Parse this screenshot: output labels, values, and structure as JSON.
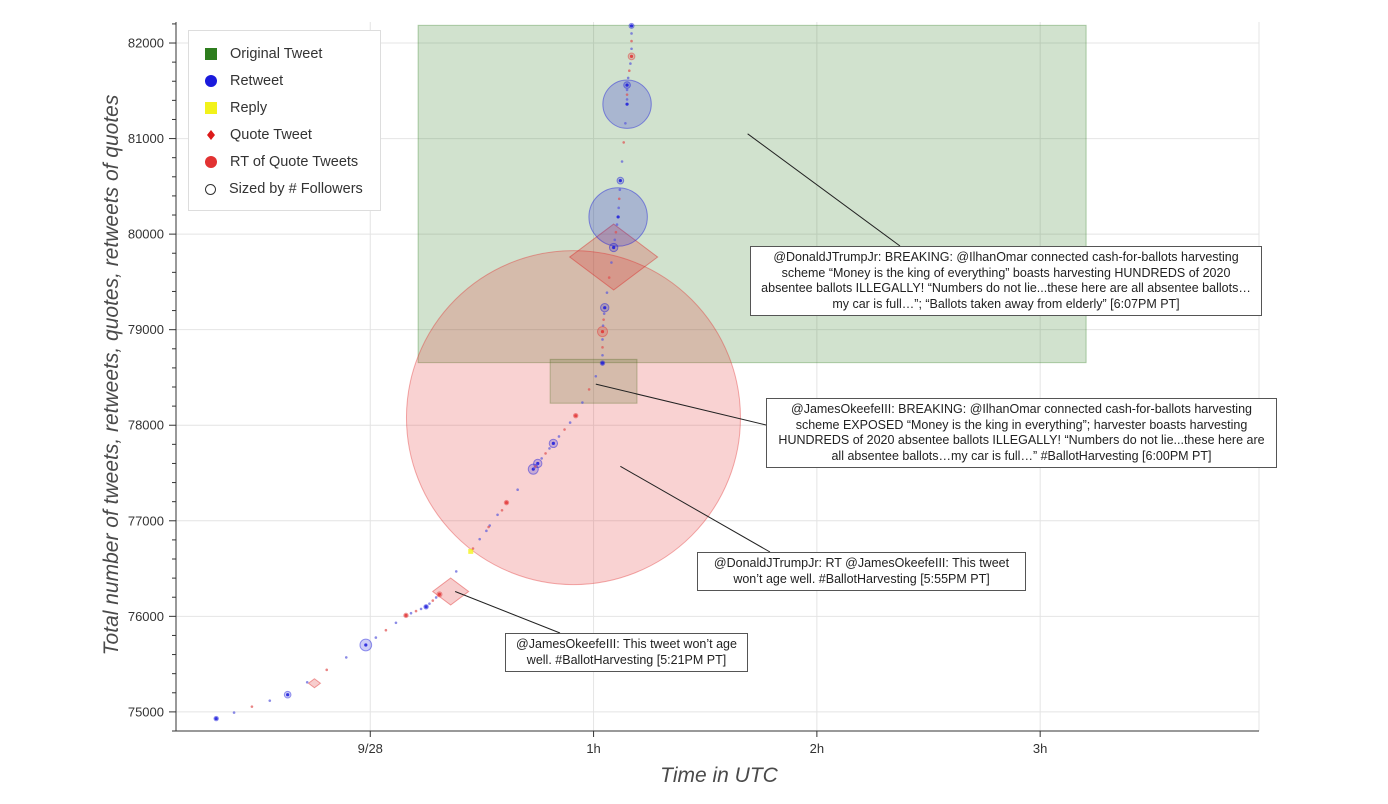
{
  "chart_data": {
    "type": "scatter",
    "title": "",
    "xlabel": "Time in UTC",
    "ylabel": "Total number of tweets, retweets, quotes, retweets of quotes",
    "x_unit": "hours after 23:00 UTC (9/27)",
    "x_ticks": [
      {
        "value": 1,
        "label": "9/28"
      },
      {
        "value": 2,
        "label": "1h"
      },
      {
        "value": 3,
        "label": "2h"
      },
      {
        "value": 4,
        "label": "3h"
      }
    ],
    "xlim": [
      0.13,
      4.98
    ],
    "ylim": [
      74800,
      82220
    ],
    "y_ticks": [
      75000,
      76000,
      77000,
      78000,
      79000,
      80000,
      81000,
      82000
    ],
    "grid": true,
    "legend": {
      "placement": "top-left",
      "entries": [
        {
          "label": "Original Tweet",
          "symbol": "square",
          "color": "#2e7d1e"
        },
        {
          "label": "Retweet",
          "symbol": "circle",
          "color": "#1a1adc"
        },
        {
          "label": "Reply",
          "symbol": "square",
          "color": "#f2f21a"
        },
        {
          "label": "Quote Tweet",
          "symbol": "diamond",
          "color": "#dc1a1a"
        },
        {
          "label": "RT of Quote Tweets",
          "symbol": "circle",
          "color": "#e23232"
        },
        {
          "label": "Sized by # Followers",
          "symbol": "circle-outline",
          "color": "#333333"
        }
      ]
    },
    "big_markers": [
      {
        "kind": "Original Tweet",
        "x": 2.71,
        "y": 80420,
        "size": 1.0
      },
      {
        "kind": "Original Tweet",
        "x": 2.0,
        "y": 78460,
        "size": 0.13
      },
      {
        "kind": "RT of Quote Tweets",
        "x": 1.91,
        "y": 78080,
        "size": 1.0
      },
      {
        "kind": "Quote Tweet",
        "x": 2.09,
        "y": 79760,
        "size": 0.44
      },
      {
        "kind": "Quote Tweet",
        "x": 1.36,
        "y": 76260,
        "size": 0.18
      },
      {
        "kind": "Quote Tweet",
        "x": 0.75,
        "y": 75300,
        "size": 0.06
      }
    ],
    "points": [
      {
        "kind": "Retweet",
        "x": 0.31,
        "y": 74930,
        "size": 0.02
      },
      {
        "kind": "Retweet",
        "x": 0.63,
        "y": 75180,
        "size": 0.04
      },
      {
        "kind": "Retweet",
        "x": 0.98,
        "y": 75700,
        "size": 0.07
      },
      {
        "kind": "RT of Quote Tweets",
        "x": 1.16,
        "y": 76010,
        "size": 0.015
      },
      {
        "kind": "Retweet",
        "x": 1.25,
        "y": 76100,
        "size": 0.01
      },
      {
        "kind": "RT of Quote Tweets",
        "x": 1.31,
        "y": 76230,
        "size": 0.03
      },
      {
        "kind": "RT of Quote Tweets",
        "x": 1.61,
        "y": 77190,
        "size": 0.02
      },
      {
        "kind": "Reply",
        "x": 1.45,
        "y": 76680,
        "size": 0.01
      },
      {
        "kind": "Retweet",
        "x": 1.73,
        "y": 77540,
        "size": 0.06
      },
      {
        "kind": "Retweet",
        "x": 1.75,
        "y": 77600,
        "size": 0.05
      },
      {
        "kind": "Retweet",
        "x": 1.82,
        "y": 77810,
        "size": 0.05
      },
      {
        "kind": "RT of Quote Tweets",
        "x": 1.92,
        "y": 78100,
        "size": 0.02
      },
      {
        "kind": "Retweet",
        "x": 2.04,
        "y": 78650,
        "size": 0.015
      },
      {
        "kind": "RT of Quote Tweets",
        "x": 2.04,
        "y": 78980,
        "size": 0.06
      },
      {
        "kind": "Retweet",
        "x": 2.05,
        "y": 79230,
        "size": 0.05
      },
      {
        "kind": "Retweet",
        "x": 2.09,
        "y": 79860,
        "size": 0.05
      },
      {
        "kind": "Retweet",
        "x": 2.11,
        "y": 80180,
        "size": 0.35
      },
      {
        "kind": "Retweet",
        "x": 2.12,
        "y": 80560,
        "size": 0.04
      },
      {
        "kind": "Retweet",
        "x": 2.15,
        "y": 81360,
        "size": 0.29
      },
      {
        "kind": "Retweet",
        "x": 2.15,
        "y": 81560,
        "size": 0.04
      },
      {
        "kind": "RT of Quote Tweets",
        "x": 2.17,
        "y": 81860,
        "size": 0.04
      },
      {
        "kind": "Retweet",
        "x": 2.17,
        "y": 82180,
        "size": 0.03
      }
    ],
    "annotations": [
      {
        "id": "trump-jr-breaking",
        "text": "@DonaldJTrumpJr:  BREAKING: @IlhanOmar connected cash-for-ballots harvesting scheme “Money is the king of everything” boasts harvesting HUNDREDS of 2020 absentee ballots ILLEGALLY! “Numbers do not lie...these here are all absentee ballots…my car is full…”; “Ballots taken away from elderly” [6:07PM PT]",
        "target": {
          "x": 2.69,
          "y": 81050
        }
      },
      {
        "id": "okeefe-breaking",
        "text": "@JamesOkeefeIII:  BREAKING: @IlhanOmar connected cash-for-ballots harvesting scheme EXPOSED  “Money is the king in everything”; harvester boasts harvesting HUNDREDS of 2020 absentee ballots ILLEGALLY! “Numbers do not lie...these here are all absentee ballots…my car is full…” #BallotHarvesting  [6:00PM PT]",
        "target": {
          "x": 2.01,
          "y": 78430
        }
      },
      {
        "id": "trump-jr-rt",
        "text": "@DonaldJTrumpJr: RT @JamesOkeefeIII: This tweet won’t age well. #BallotHarvesting [5:55PM PT]",
        "target": {
          "x": 2.12,
          "y": 77570
        }
      },
      {
        "id": "okeefe-age-well",
        "text": "@JamesOkeefeIII: This tweet won’t age well. #BallotHarvesting [5:21PM PT]",
        "target": {
          "x": 1.38,
          "y": 76260
        }
      }
    ]
  }
}
